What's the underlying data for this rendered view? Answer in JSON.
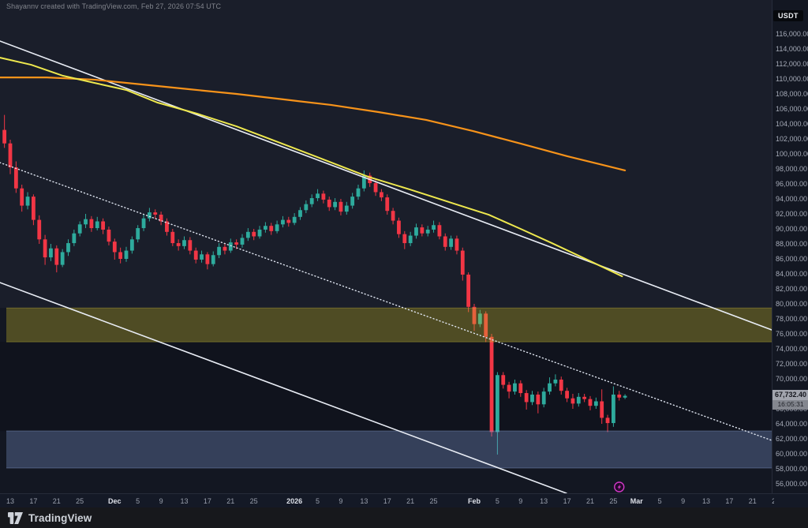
{
  "attribution": "Shayannv created with TradingView.com, Feb 27, 2026 07:54 UTC",
  "symbol_badge": "USDT",
  "logo_text": "TradingView",
  "last_price": {
    "value": "67,732.40",
    "countdown": "16:05:31"
  },
  "colors": {
    "background": "#131722",
    "candle_up": "#2eab9d",
    "candle_down": "#f23645",
    "ma_orange": "#f7931a",
    "ma_yellow": "#eee84e",
    "channel_line": "#e9edf5",
    "channel_dotted": "#dfe5f0",
    "zone_resistance_fill": "rgba(203,184,44,0.33)",
    "zone_support_fill": "rgba(125,150,205,0.33)",
    "event_marker": "#d238c8"
  },
  "chart_data": {
    "type": "candlestick",
    "interval": "1D",
    "quote_currency": "USDT",
    "start_date": "2025-11-12",
    "y_axis": {
      "min": 56000,
      "max": 116000,
      "tick_step": 2000,
      "last_price": 67732.4
    },
    "grid": false,
    "candles_ohlc": [
      [
        103200,
        105200,
        100800,
        101400
      ],
      [
        101400,
        101900,
        97300,
        98200
      ],
      [
        98200,
        99000,
        94800,
        95400
      ],
      [
        95400,
        95900,
        92300,
        93100
      ],
      [
        93100,
        94900,
        92600,
        94300
      ],
      [
        94300,
        94600,
        90500,
        91200
      ],
      [
        91200,
        91800,
        88000,
        88600
      ],
      [
        88600,
        89200,
        85200,
        86200
      ],
      [
        86200,
        88000,
        85700,
        87400
      ],
      [
        87400,
        87800,
        84200,
        85200
      ],
      [
        85200,
        87300,
        84900,
        86900
      ],
      [
        86900,
        88600,
        86400,
        88100
      ],
      [
        88100,
        89900,
        87700,
        89400
      ],
      [
        89400,
        91000,
        89000,
        90600
      ],
      [
        90600,
        92000,
        90100,
        91300
      ],
      [
        91300,
        91700,
        89600,
        90100
      ],
      [
        90100,
        91600,
        89800,
        91000
      ],
      [
        91000,
        91400,
        89300,
        89900
      ],
      [
        89900,
        90300,
        87800,
        88300
      ],
      [
        88300,
        88700,
        85900,
        86900
      ],
      [
        86900,
        87500,
        85400,
        86000
      ],
      [
        86000,
        87600,
        85600,
        87100
      ],
      [
        87100,
        89000,
        86700,
        88600
      ],
      [
        88600,
        90500,
        88200,
        90100
      ],
      [
        90100,
        91900,
        89700,
        91400
      ],
      [
        91400,
        92800,
        91000,
        92200
      ],
      [
        92200,
        92600,
        91300,
        91900
      ],
      [
        91900,
        92300,
        90500,
        91000
      ],
      [
        91000,
        91400,
        89100,
        89600
      ],
      [
        89600,
        90000,
        87700,
        88100
      ],
      [
        88100,
        88600,
        87100,
        87700
      ],
      [
        87700,
        89000,
        87300,
        88500
      ],
      [
        88500,
        88900,
        86600,
        87100
      ],
      [
        87100,
        87500,
        85400,
        85900
      ],
      [
        85900,
        87100,
        85500,
        86600
      ],
      [
        86600,
        86900,
        84600,
        85300
      ],
      [
        85300,
        87000,
        85000,
        86500
      ],
      [
        86500,
        88100,
        86100,
        87600
      ],
      [
        87600,
        88000,
        86600,
        87100
      ],
      [
        87100,
        88700,
        86800,
        88200
      ],
      [
        88200,
        88600,
        87300,
        87900
      ],
      [
        87900,
        89300,
        87500,
        88800
      ],
      [
        88800,
        90100,
        88400,
        89600
      ],
      [
        89600,
        90000,
        88500,
        89000
      ],
      [
        89000,
        90400,
        88700,
        89900
      ],
      [
        89900,
        90900,
        89500,
        90400
      ],
      [
        90400,
        90800,
        89200,
        89700
      ],
      [
        89700,
        91100,
        89400,
        90600
      ],
      [
        90600,
        91700,
        90200,
        91200
      ],
      [
        91200,
        91600,
        90300,
        90800
      ],
      [
        90800,
        92100,
        90500,
        91600
      ],
      [
        91600,
        92900,
        91200,
        92500
      ],
      [
        92500,
        93800,
        92100,
        93300
      ],
      [
        93300,
        94600,
        92900,
        94100
      ],
      [
        94100,
        95300,
        93700,
        94700
      ],
      [
        94700,
        95100,
        93400,
        93900
      ],
      [
        93900,
        94300,
        92400,
        92900
      ],
      [
        92900,
        94100,
        92500,
        93600
      ],
      [
        93600,
        94000,
        91800,
        92300
      ],
      [
        92300,
        93600,
        91900,
        93100
      ],
      [
        93100,
        94800,
        92700,
        94300
      ],
      [
        94300,
        95900,
        93900,
        95400
      ],
      [
        95400,
        97800,
        95000,
        97100
      ],
      [
        97100,
        97500,
        95600,
        96100
      ],
      [
        96100,
        96500,
        94400,
        94900
      ],
      [
        94900,
        95300,
        93700,
        94200
      ],
      [
        94200,
        94600,
        91900,
        92400
      ],
      [
        92400,
        92800,
        90600,
        91100
      ],
      [
        91100,
        91500,
        88800,
        89300
      ],
      [
        89300,
        89700,
        87300,
        88100
      ],
      [
        88100,
        89600,
        87700,
        89100
      ],
      [
        89100,
        90700,
        88700,
        90200
      ],
      [
        90200,
        90600,
        89000,
        89400
      ],
      [
        89400,
        90400,
        89000,
        89900
      ],
      [
        89900,
        91100,
        89500,
        90500
      ],
      [
        90500,
        90900,
        88600,
        89000
      ],
      [
        89000,
        89400,
        87100,
        87600
      ],
      [
        87600,
        89100,
        87200,
        88700
      ],
      [
        88700,
        89100,
        86600,
        87100
      ],
      [
        87100,
        87500,
        83100,
        83900
      ],
      [
        83900,
        84200,
        78900,
        79600
      ],
      [
        79600,
        80000,
        76400,
        77300
      ],
      [
        77300,
        79200,
        76900,
        78700
      ],
      [
        78700,
        79000,
        74900,
        75600
      ],
      [
        75600,
        76000,
        62300,
        62900
      ],
      [
        62900,
        70900,
        59900,
        70500
      ],
      [
        70500,
        70900,
        68700,
        69200
      ],
      [
        69200,
        69600,
        67400,
        68300
      ],
      [
        68300,
        69900,
        67900,
        69400
      ],
      [
        69400,
        69800,
        67600,
        68100
      ],
      [
        68100,
        68500,
        65900,
        66900
      ],
      [
        66900,
        68400,
        66500,
        67900
      ],
      [
        67900,
        68300,
        65400,
        66600
      ],
      [
        66600,
        68800,
        66200,
        68300
      ],
      [
        68300,
        70200,
        67900,
        69400
      ],
      [
        69400,
        70600,
        69000,
        69900
      ],
      [
        69900,
        70300,
        67900,
        68400
      ],
      [
        68400,
        68800,
        66900,
        67400
      ],
      [
        67400,
        68000,
        66000,
        66700
      ],
      [
        66700,
        68100,
        66300,
        67600
      ],
      [
        67600,
        68000,
        66900,
        67300
      ],
      [
        67300,
        67700,
        65800,
        66400
      ],
      [
        66400,
        67500,
        66000,
        67000
      ],
      [
        67000,
        68600,
        64000,
        64800
      ],
      [
        64800,
        65200,
        62900,
        64100
      ],
      [
        64100,
        69000,
        63600,
        67900
      ],
      [
        67900,
        68400,
        67100,
        67500
      ],
      [
        67500,
        67950,
        67300,
        67732.4
      ]
    ],
    "x_ticks": [
      {
        "i": 1,
        "label": "13"
      },
      {
        "i": 5,
        "label": "17"
      },
      {
        "i": 9,
        "label": "21"
      },
      {
        "i": 13,
        "label": "25"
      },
      {
        "i": 19,
        "label": "Dec",
        "major": true
      },
      {
        "i": 23,
        "label": "5"
      },
      {
        "i": 27,
        "label": "9"
      },
      {
        "i": 31,
        "label": "13"
      },
      {
        "i": 35,
        "label": "17"
      },
      {
        "i": 39,
        "label": "21"
      },
      {
        "i": 43,
        "label": "25"
      },
      {
        "i": 50,
        "label": "2026",
        "major": true
      },
      {
        "i": 54,
        "label": "5"
      },
      {
        "i": 58,
        "label": "9"
      },
      {
        "i": 62,
        "label": "13"
      },
      {
        "i": 66,
        "label": "17"
      },
      {
        "i": 70,
        "label": "21"
      },
      {
        "i": 74,
        "label": "25"
      },
      {
        "i": 81,
        "label": "Feb",
        "major": true
      },
      {
        "i": 85,
        "label": "5"
      },
      {
        "i": 89,
        "label": "9"
      },
      {
        "i": 93,
        "label": "13"
      },
      {
        "i": 97,
        "label": "17"
      },
      {
        "i": 101,
        "label": "21"
      },
      {
        "i": 105,
        "label": "25"
      },
      {
        "i": 109,
        "label": "Mar",
        "major": true
      },
      {
        "i": 113,
        "label": "5"
      },
      {
        "i": 117,
        "label": "9"
      },
      {
        "i": 121,
        "label": "13"
      },
      {
        "i": 125,
        "label": "17"
      },
      {
        "i": 129,
        "label": "21"
      },
      {
        "i": 133,
        "label": "25"
      }
    ],
    "overlays": {
      "ma_slow_orange": [
        [
          -0.8,
          110200
        ],
        [
          7.3,
          110200
        ],
        [
          15.5,
          109900
        ],
        [
          23.7,
          109260
        ],
        [
          31.8,
          108630
        ],
        [
          40,
          108000
        ],
        [
          48.2,
          107260
        ],
        [
          56.3,
          106530
        ],
        [
          64.5,
          105580
        ],
        [
          72.7,
          104530
        ],
        [
          80.8,
          103050
        ],
        [
          89,
          101370
        ],
        [
          97.1,
          99680
        ],
        [
          107,
          97800
        ]
      ],
      "ma_fast_yellow": [
        [
          -0.8,
          112840
        ],
        [
          4.6,
          111890
        ],
        [
          10.1,
          110420
        ],
        [
          15.5,
          109470
        ],
        [
          21,
          108530
        ],
        [
          26.4,
          106840
        ],
        [
          33.2,
          105370
        ],
        [
          40,
          103680
        ],
        [
          45.4,
          102100
        ],
        [
          53.6,
          99680
        ],
        [
          62.7,
          96950
        ],
        [
          69.9,
          95260
        ],
        [
          77.1,
          93470
        ],
        [
          83.5,
          91890
        ],
        [
          89,
          90000
        ],
        [
          94.4,
          88100
        ],
        [
          99.9,
          86100
        ],
        [
          106.5,
          83680
        ]
      ],
      "channel_upper": [
        [
          -0.8,
          115053
        ],
        [
          132.3,
          76530
        ]
      ],
      "channel_mid_dotted": [
        [
          -0.8,
          98843
        ],
        [
          132.3,
          61790
        ]
      ],
      "channel_lower": [
        [
          -0.8,
          82843
        ],
        [
          96.9,
          54740
        ]
      ],
      "zones": [
        {
          "name": "resistance-zone",
          "price_top": 79450,
          "price_bottom": 74930
        },
        {
          "name": "support-zone",
          "price_top": 63050,
          "price_bottom": 58100
        }
      ],
      "event_marker": {
        "i": 106
      }
    }
  }
}
